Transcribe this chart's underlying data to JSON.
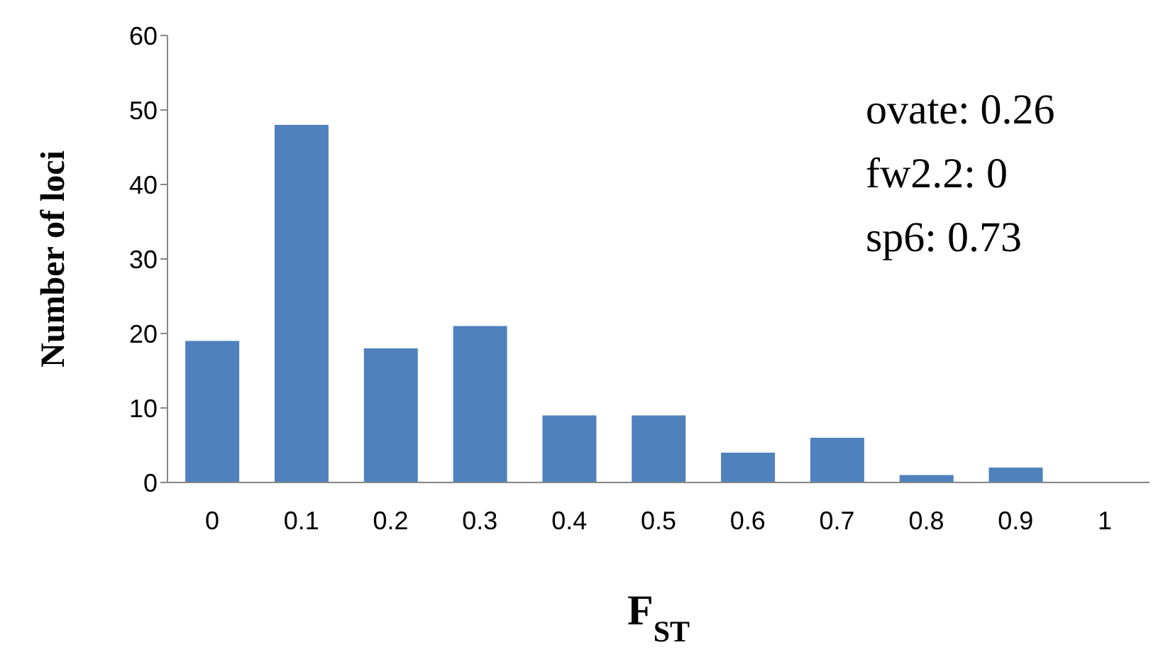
{
  "chart_data": {
    "type": "bar",
    "xlabel": "F$_{ST}$",
    "ylabel": "Number of loci",
    "categories": [
      "0",
      "0.1",
      "0.2",
      "0.3",
      "0.4",
      "0.5",
      "0.6",
      "0.7",
      "0.8",
      "0.9",
      "1"
    ],
    "values": [
      19,
      48,
      18,
      21,
      9,
      9,
      4,
      6,
      1,
      2,
      0
    ],
    "color": "#4f81bd",
    "ylim": [
      0,
      60
    ],
    "yticks": [
      0,
      10,
      20,
      30,
      40,
      50,
      60
    ],
    "annotations": [
      "ovate: 0.26",
      "fw2.2: 0",
      "sp6: 0.73"
    ]
  }
}
